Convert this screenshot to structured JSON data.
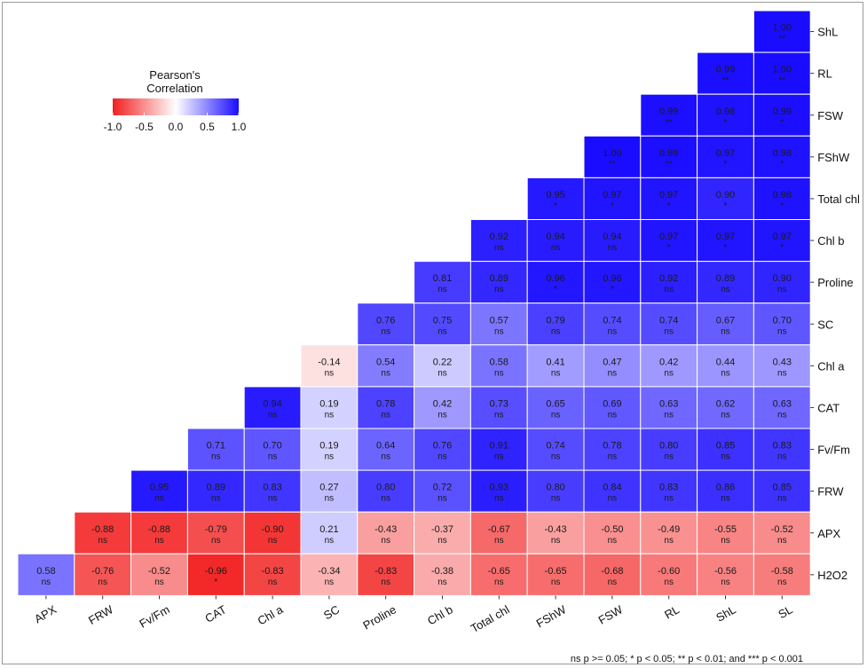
{
  "chart_data": {
    "type": "heatmap",
    "title": "",
    "legend": {
      "title_line1": "Pearson's",
      "title_line2": "Correlation",
      "ticks": [
        "-1.0",
        "-0.5",
        "0.0",
        "0.5",
        "1.0"
      ],
      "range": [
        -1,
        1
      ],
      "placement": "top-left",
      "color_low": "#f21f1f",
      "color_mid": "#ffffff",
      "color_high": "#1a0dff"
    },
    "x_labels": [
      "APX",
      "FRW",
      "Fv/Fm",
      "CAT",
      "Chl a",
      "SC",
      "Proline",
      "Chl b",
      "Total chl",
      "FShW",
      "FSW",
      "RL",
      "ShL",
      "SL"
    ],
    "y_labels": [
      "ShL",
      "RL",
      "FSW",
      "FShW",
      "Total chl",
      "Chl b",
      "Proline",
      "SC",
      "Chl a",
      "CAT",
      "Fv/Fm",
      "FRW",
      "APX",
      "H2O2"
    ],
    "rows": [
      {
        "label": "ShL",
        "cells": [
          {
            "col": 13,
            "value": "1.00",
            "sig": "**"
          }
        ]
      },
      {
        "label": "RL",
        "cells": [
          {
            "col": 12,
            "value": "0.99",
            "sig": "**"
          },
          {
            "col": 13,
            "value": "1.00",
            "sig": "**"
          }
        ]
      },
      {
        "label": "FSW",
        "cells": [
          {
            "col": 11,
            "value": "0.99",
            "sig": "**"
          },
          {
            "col": 12,
            "value": "0.98",
            "sig": "*"
          },
          {
            "col": 13,
            "value": "0.99",
            "sig": "*"
          }
        ]
      },
      {
        "label": "FShW",
        "cells": [
          {
            "col": 10,
            "value": "1.00",
            "sig": "**"
          },
          {
            "col": 11,
            "value": "0.99",
            "sig": "**"
          },
          {
            "col": 12,
            "value": "0.97",
            "sig": "*"
          },
          {
            "col": 13,
            "value": "0.98",
            "sig": "*"
          }
        ]
      },
      {
        "label": "Total chl",
        "cells": [
          {
            "col": 9,
            "value": "0.95",
            "sig": "*"
          },
          {
            "col": 10,
            "value": "0.97",
            "sig": "*"
          },
          {
            "col": 11,
            "value": "0.97",
            "sig": "*"
          },
          {
            "col": 12,
            "value": "0.90",
            "sig": "*"
          },
          {
            "col": 13,
            "value": "0.98",
            "sig": "*"
          }
        ]
      },
      {
        "label": "Chl b",
        "cells": [
          {
            "col": 8,
            "value": "0.92",
            "sig": "ns"
          },
          {
            "col": 9,
            "value": "0.94",
            "sig": "ns"
          },
          {
            "col": 10,
            "value": "0.94",
            "sig": "ns"
          },
          {
            "col": 11,
            "value": "0.97",
            "sig": "*"
          },
          {
            "col": 12,
            "value": "0.97",
            "sig": "*"
          },
          {
            "col": 13,
            "value": "0.97",
            "sig": "*"
          }
        ]
      },
      {
        "label": "Proline",
        "cells": [
          {
            "col": 7,
            "value": "0.81",
            "sig": "ns"
          },
          {
            "col": 8,
            "value": "0.89",
            "sig": "ns"
          },
          {
            "col": 9,
            "value": "0.96",
            "sig": "*"
          },
          {
            "col": 10,
            "value": "0.96",
            "sig": "*"
          },
          {
            "col": 11,
            "value": "0.92",
            "sig": "ns"
          },
          {
            "col": 12,
            "value": "0.89",
            "sig": "ns"
          },
          {
            "col": 13,
            "value": "0.90",
            "sig": "ns"
          }
        ]
      },
      {
        "label": "SC",
        "cells": [
          {
            "col": 6,
            "value": "0.76",
            "sig": "ns"
          },
          {
            "col": 7,
            "value": "0.75",
            "sig": "ns"
          },
          {
            "col": 8,
            "value": "0.57",
            "sig": "ns"
          },
          {
            "col": 9,
            "value": "0.79",
            "sig": "ns"
          },
          {
            "col": 10,
            "value": "0.74",
            "sig": "ns"
          },
          {
            "col": 11,
            "value": "0.74",
            "sig": "ns"
          },
          {
            "col": 12,
            "value": "0.67",
            "sig": "ns"
          },
          {
            "col": 13,
            "value": "0.70",
            "sig": "ns"
          }
        ]
      },
      {
        "label": "Chl a",
        "cells": [
          {
            "col": 5,
            "value": "-0.14",
            "sig": "ns"
          },
          {
            "col": 6,
            "value": "0.54",
            "sig": "ns"
          },
          {
            "col": 7,
            "value": "0.22",
            "sig": "ns"
          },
          {
            "col": 8,
            "value": "0.58",
            "sig": "ns"
          },
          {
            "col": 9,
            "value": "0.41",
            "sig": "ns"
          },
          {
            "col": 10,
            "value": "0.47",
            "sig": "ns"
          },
          {
            "col": 11,
            "value": "0.42",
            "sig": "ns"
          },
          {
            "col": 12,
            "value": "0.44",
            "sig": "ns"
          },
          {
            "col": 13,
            "value": "0.43",
            "sig": "ns"
          }
        ]
      },
      {
        "label": "CAT",
        "cells": [
          {
            "col": 4,
            "value": "0.94",
            "sig": "ns"
          },
          {
            "col": 5,
            "value": "0.19",
            "sig": "ns"
          },
          {
            "col": 6,
            "value": "0.78",
            "sig": "ns"
          },
          {
            "col": 7,
            "value": "0.42",
            "sig": "ns"
          },
          {
            "col": 8,
            "value": "0.73",
            "sig": "ns"
          },
          {
            "col": 9,
            "value": "0.65",
            "sig": "ns"
          },
          {
            "col": 10,
            "value": "0.69",
            "sig": "ns"
          },
          {
            "col": 11,
            "value": "0.63",
            "sig": "ns"
          },
          {
            "col": 12,
            "value": "0.62",
            "sig": "ns"
          },
          {
            "col": 13,
            "value": "0.63",
            "sig": "ns"
          }
        ]
      },
      {
        "label": "Fv/Fm",
        "cells": [
          {
            "col": 3,
            "value": "0.71",
            "sig": "ns"
          },
          {
            "col": 4,
            "value": "0.70",
            "sig": "ns"
          },
          {
            "col": 5,
            "value": "0.19",
            "sig": "ns"
          },
          {
            "col": 6,
            "value": "0.64",
            "sig": "ns"
          },
          {
            "col": 7,
            "value": "0.76",
            "sig": "ns"
          },
          {
            "col": 8,
            "value": "0.91",
            "sig": "ns"
          },
          {
            "col": 9,
            "value": "0.74",
            "sig": "ns"
          },
          {
            "col": 10,
            "value": "0.78",
            "sig": "ns"
          },
          {
            "col": 11,
            "value": "0.80",
            "sig": "ns"
          },
          {
            "col": 12,
            "value": "0.85",
            "sig": "ns"
          },
          {
            "col": 13,
            "value": "0.83",
            "sig": "ns"
          }
        ]
      },
      {
        "label": "FRW",
        "cells": [
          {
            "col": 2,
            "value": "0.95",
            "sig": "ns"
          },
          {
            "col": 3,
            "value": "0.89",
            "sig": "ns"
          },
          {
            "col": 4,
            "value": "0.83",
            "sig": "ns"
          },
          {
            "col": 5,
            "value": "0.27",
            "sig": "ns"
          },
          {
            "col": 6,
            "value": "0.80",
            "sig": "ns"
          },
          {
            "col": 7,
            "value": "0.72",
            "sig": "ns"
          },
          {
            "col": 8,
            "value": "0.93",
            "sig": "ns"
          },
          {
            "col": 9,
            "value": "0.80",
            "sig": "ns"
          },
          {
            "col": 10,
            "value": "0.84",
            "sig": "ns"
          },
          {
            "col": 11,
            "value": "0.83",
            "sig": "ns"
          },
          {
            "col": 12,
            "value": "0.86",
            "sig": "ns"
          },
          {
            "col": 13,
            "value": "0.85",
            "sig": "ns"
          }
        ]
      },
      {
        "label": "APX",
        "cells": [
          {
            "col": 1,
            "value": "-0.88",
            "sig": "ns"
          },
          {
            "col": 2,
            "value": "-0.88",
            "sig": "ns"
          },
          {
            "col": 3,
            "value": "-0.79",
            "sig": "ns"
          },
          {
            "col": 4,
            "value": "-0.90",
            "sig": "ns"
          },
          {
            "col": 5,
            "value": "0.21",
            "sig": "ns"
          },
          {
            "col": 6,
            "value": "-0.43",
            "sig": "ns"
          },
          {
            "col": 7,
            "value": "-0.37",
            "sig": "ns"
          },
          {
            "col": 8,
            "value": "-0.67",
            "sig": "ns"
          },
          {
            "col": 9,
            "value": "-0.43",
            "sig": "ns"
          },
          {
            "col": 10,
            "value": "-0.50",
            "sig": "ns"
          },
          {
            "col": 11,
            "value": "-0.49",
            "sig": "ns"
          },
          {
            "col": 12,
            "value": "-0.55",
            "sig": "ns"
          },
          {
            "col": 13,
            "value": "-0.52",
            "sig": "ns"
          }
        ]
      },
      {
        "label": "H2O2",
        "cells": [
          {
            "col": 0,
            "value": "0.58",
            "sig": "ns"
          },
          {
            "col": 1,
            "value": "-0.76",
            "sig": "ns"
          },
          {
            "col": 2,
            "value": "-0.52",
            "sig": "ns"
          },
          {
            "col": 3,
            "value": "-0.96",
            "sig": "*"
          },
          {
            "col": 4,
            "value": "-0.83",
            "sig": "ns"
          },
          {
            "col": 5,
            "value": "-0.34",
            "sig": "ns"
          },
          {
            "col": 6,
            "value": "-0.83",
            "sig": "ns"
          },
          {
            "col": 7,
            "value": "-0.38",
            "sig": "ns"
          },
          {
            "col": 8,
            "value": "-0.65",
            "sig": "ns"
          },
          {
            "col": 9,
            "value": "-0.65",
            "sig": "ns"
          },
          {
            "col": 10,
            "value": "-0.68",
            "sig": "ns"
          },
          {
            "col": 11,
            "value": "-0.60",
            "sig": "ns"
          },
          {
            "col": 12,
            "value": "-0.56",
            "sig": "ns"
          },
          {
            "col": 13,
            "value": "-0.58",
            "sig": "ns"
          }
        ]
      }
    ],
    "footnote": "ns p >= 0.05; * p < 0.05; ** p < 0.01; and *** p < 0.001"
  }
}
